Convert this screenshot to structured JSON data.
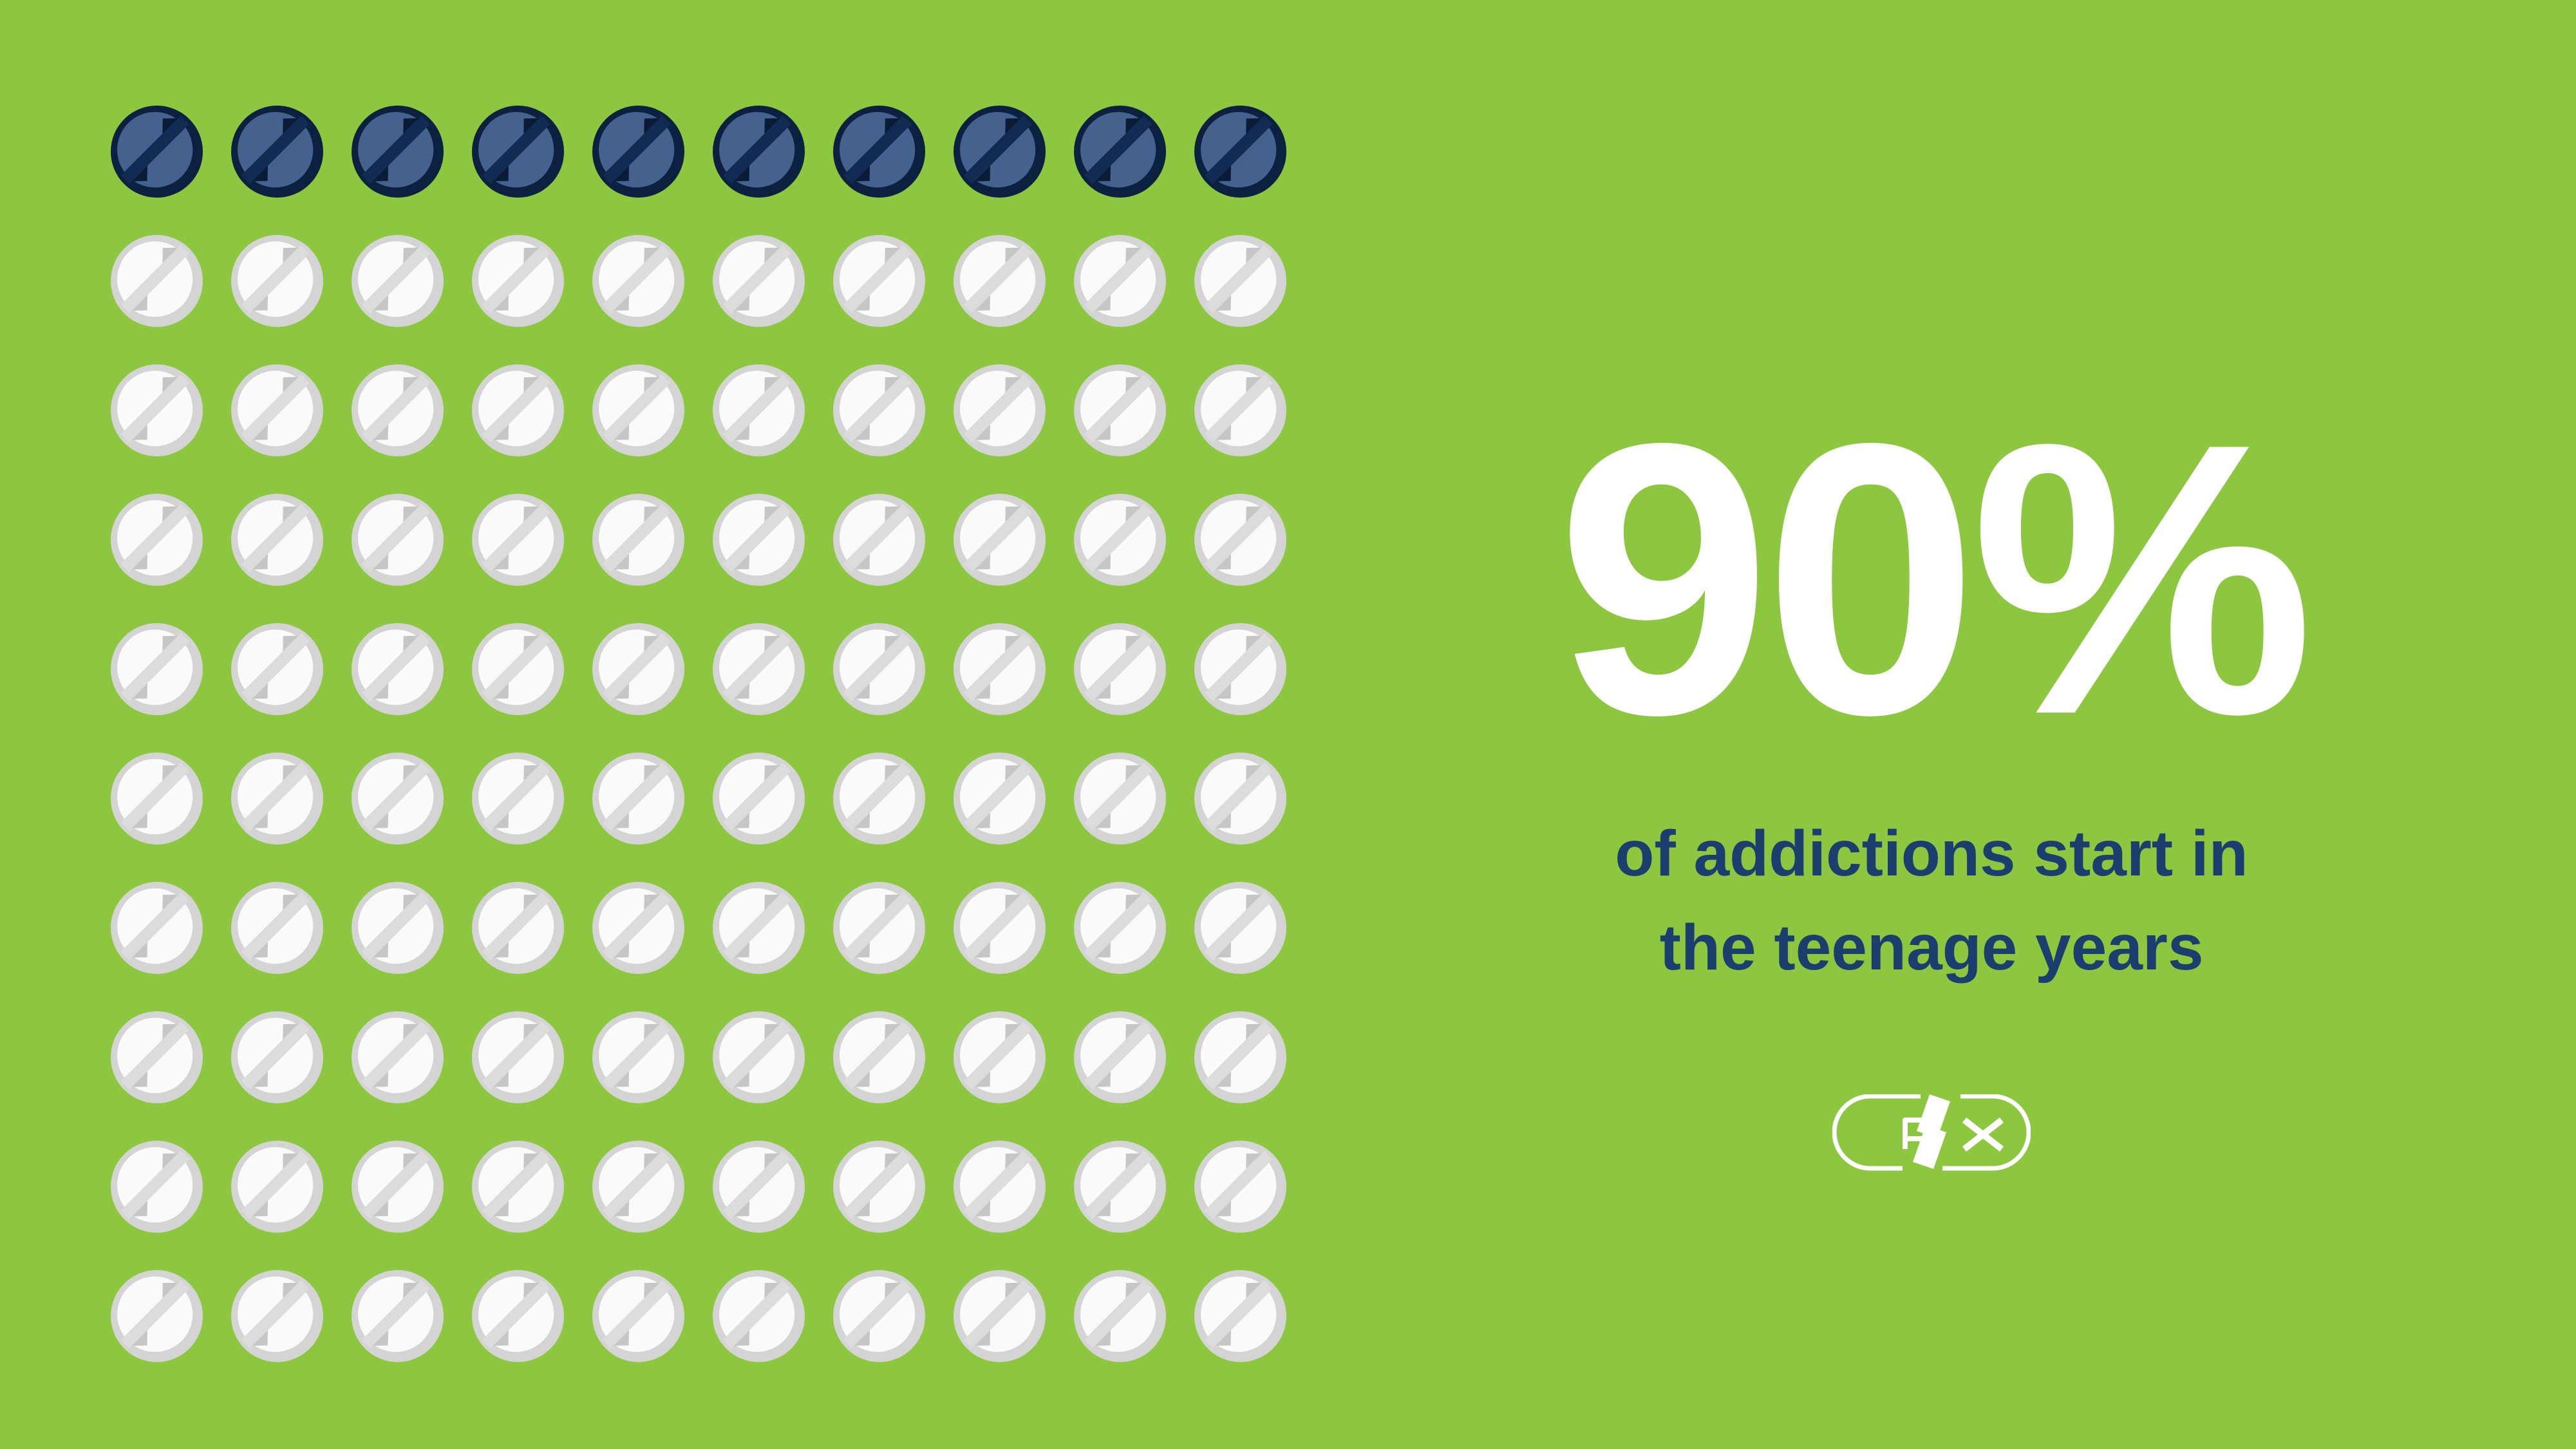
{
  "background_color": "#8dc63f",
  "stat": {
    "value": "90%",
    "color": "#ffffff"
  },
  "caption": {
    "line1": "of addictions start in",
    "line2": "the teenage years",
    "color": "#1b3e6e"
  },
  "logo": {
    "text": "RX",
    "description": "pill-capsule outline with letters R and X separated by a lightning bolt",
    "color": "#ffffff"
  },
  "chart_data": {
    "type": "pictograph",
    "title": "90% of addictions start in the teenage years",
    "icon": "pill-tablet",
    "total_icons": 100,
    "columns": 10,
    "rows": 10,
    "highlighted_icons": 10,
    "highlighted_rows": "top row",
    "highlighted_share_pct": 10,
    "plain_share_pct": 90,
    "stat_shown": "90%",
    "legend": "none",
    "colors": {
      "highlighted": {
        "ring": "#0c2140",
        "face": "#45618e",
        "score": "#122b52",
        "flare": "#091c36"
      },
      "plain": {
        "ring": "#d4d4d4",
        "face": "#fafafa",
        "score": "#dcdcdc",
        "flare": "#c6c6c6"
      }
    }
  }
}
